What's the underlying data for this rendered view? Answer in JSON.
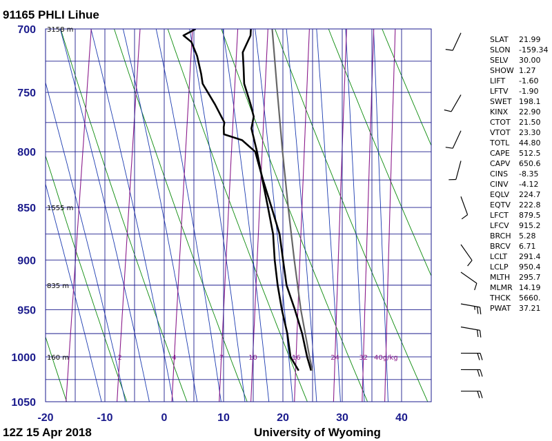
{
  "chart_data": {
    "type": "line",
    "title": "91165 PHLI Lihue",
    "footer_left": "12Z 15 Apr 2018",
    "footer_right": "University of Wyoming",
    "pressure_ticks": [
      "700",
      "750",
      "800",
      "850",
      "900",
      "950",
      "1000",
      "1050"
    ],
    "temperature_ticks": [
      "-20",
      "-10",
      "0",
      "10",
      "20",
      "30",
      "40"
    ],
    "ylim": [
      1050,
      700
    ],
    "xlim": [
      -20,
      45
    ],
    "grid": true,
    "height_labels": [
      {
        "p": 700,
        "label": "3158 m"
      },
      {
        "p": 850,
        "label": "1555 m"
      },
      {
        "p": 925,
        "label": "835 m"
      },
      {
        "p": 1000,
        "label": "160 m"
      }
    ],
    "mixing_ratio_labels": [
      "2",
      "4",
      "7",
      "10",
      "16",
      "24",
      "32",
      "40g/kg"
    ],
    "series": [
      {
        "points": [
          [
            1015,
            21.9
          ],
          [
            1000,
            20.2
          ],
          [
            975,
            19.1
          ],
          [
            950,
            17.6
          ],
          [
            925,
            16.3
          ],
          [
            900,
            15.2
          ],
          [
            875,
            14.3
          ],
          [
            850,
            12.8
          ],
          [
            825,
            11.2
          ],
          [
            800,
            9.6
          ],
          [
            780,
            8.1
          ],
          [
            770,
            8.2
          ],
          [
            760,
            7.4
          ],
          [
            743,
            5.8
          ],
          [
            730,
            5.3
          ],
          [
            718,
            4.8
          ],
          [
            705,
            5.7
          ],
          [
            700,
            5.6
          ]
        ]
      },
      {
        "points": [
          [
            1015,
            24.0
          ],
          [
            1000,
            23.0
          ],
          [
            975,
            21.6
          ],
          [
            950,
            19.8
          ],
          [
            925,
            17.8
          ],
          [
            900,
            16.6
          ],
          [
            875,
            15.4
          ],
          [
            850,
            13.4
          ],
          [
            825,
            11.3
          ],
          [
            800,
            9.3
          ],
          [
            790,
            6.8
          ],
          [
            785,
            3.6
          ],
          [
            779,
            3.4
          ],
          [
            775,
            3.4
          ],
          [
            760,
            1.4
          ],
          [
            743,
            -1.2
          ],
          [
            735,
            -1.7
          ],
          [
            721,
            -2.8
          ],
          [
            710,
            -4.1
          ],
          [
            705,
            -5.6
          ],
          [
            700,
            -3.7
          ]
        ]
      },
      {
        "points": [
          [
            1015,
            24.2
          ],
          [
            1000,
            23.4
          ],
          [
            950,
            20.8
          ],
          [
            900,
            18.5
          ],
          [
            850,
            16.2
          ],
          [
            800,
            13.9
          ],
          [
            750,
            11.6
          ],
          [
            700,
            9.2
          ]
        ]
      }
    ],
    "wind_barbs": [
      {
        "p": 703,
        "dir": 205,
        "kt": 10
      },
      {
        "p": 752,
        "dir": 210,
        "kt": 10
      },
      {
        "p": 782,
        "dir": 205,
        "kt": 10
      },
      {
        "p": 808,
        "dir": 195,
        "kt": 10
      },
      {
        "p": 840,
        "dir": 160,
        "kt": 10
      },
      {
        "p": 885,
        "dir": 145,
        "kt": 10
      },
      {
        "p": 912,
        "dir": 125,
        "kt": 10
      },
      {
        "p": 944,
        "dir": 100,
        "kt": 25
      },
      {
        "p": 968,
        "dir": 100,
        "kt": 20
      },
      {
        "p": 996,
        "dir": 90,
        "kt": 20
      },
      {
        "p": 1014,
        "dir": 90,
        "kt": 20
      },
      {
        "p": 1038,
        "dir": 90,
        "kt": 20
      }
    ]
  },
  "indices": [
    {
      "k": "SLAT",
      "v": "21.99"
    },
    {
      "k": "SLON",
      "v": "-159.34"
    },
    {
      "k": "SELV",
      "v": "30.00"
    },
    {
      "k": "SHOW",
      "v": "1.27"
    },
    {
      "k": "LIFT",
      "v": "-1.60"
    },
    {
      "k": "LFTV",
      "v": "-1.90"
    },
    {
      "k": "SWET",
      "v": "198.1"
    },
    {
      "k": "KINX",
      "v": "22.90"
    },
    {
      "k": "CTOT",
      "v": "21.50"
    },
    {
      "k": "VTOT",
      "v": "23.30"
    },
    {
      "k": "TOTL",
      "v": "44.80"
    },
    {
      "k": "CAPE",
      "v": "512.5"
    },
    {
      "k": "CAPV",
      "v": "650.6"
    },
    {
      "k": "CINS",
      "v": "-8.35"
    },
    {
      "k": "CINV",
      "v": "-4.12"
    },
    {
      "k": "EQLV",
      "v": "224.7"
    },
    {
      "k": "EQTV",
      "v": "222.8"
    },
    {
      "k": "LFCT",
      "v": "879.5"
    },
    {
      "k": "LFCV",
      "v": "915.2"
    },
    {
      "k": "BRCH",
      "v": "5.28"
    },
    {
      "k": "BRCV",
      "v": "6.71"
    },
    {
      "k": "LCLT",
      "v": "291.4"
    },
    {
      "k": "LCLP",
      "v": "950.4"
    },
    {
      "k": "MLTH",
      "v": "295.7"
    },
    {
      "k": "MLMR",
      "v": "14.19"
    },
    {
      "k": "THCK",
      "v": "5660."
    },
    {
      "k": "PWAT",
      "v": "37.21"
    }
  ],
  "colors": {
    "grid": "#1a1a8c",
    "dry_adiabat": "#0a8a0a",
    "moist_adiabat": "#1a3ab0",
    "mixing_ratio": "#8a1a8a",
    "profile": "#000000",
    "parcel": "#666666"
  }
}
